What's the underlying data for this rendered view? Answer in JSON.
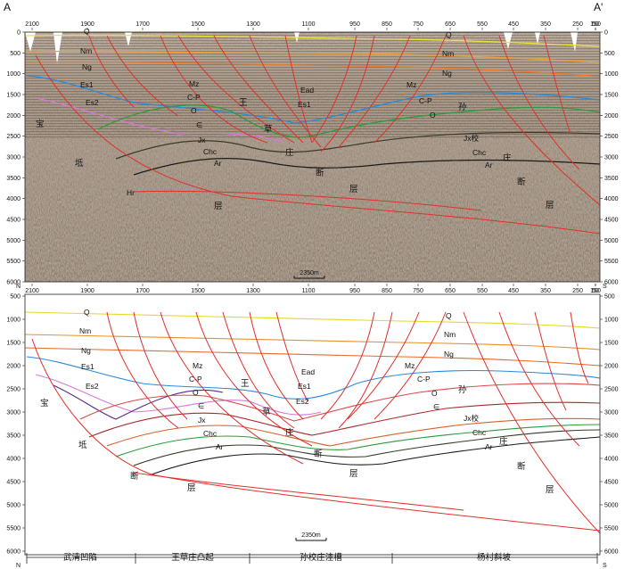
{
  "corner_labels": {
    "left": "A",
    "right": "A'"
  },
  "direction_labels": {
    "north": "N",
    "south": "S"
  },
  "cdp_labels": [
    "2100",
    "1900",
    "1700",
    "1500",
    "1300",
    "1100",
    "950",
    "850",
    "750",
    "650",
    "550",
    "450",
    "350",
    "250",
    "150",
    "50"
  ],
  "depth_labels": [
    "0",
    "500",
    "1000",
    "1500",
    "2000",
    "2500",
    "3000",
    "3500",
    "4000",
    "4500",
    "5000",
    "5500",
    "6000"
  ],
  "scale_bar_label": "2350m",
  "seismic_labels": [
    {
      "id": "q",
      "text": "Q"
    },
    {
      "id": "nm",
      "text": "Nm"
    },
    {
      "id": "ng",
      "text": "Ng"
    },
    {
      "id": "es1",
      "text": "Es1"
    },
    {
      "id": "es2",
      "text": "Es2"
    },
    {
      "id": "mz",
      "text": "Mz"
    },
    {
      "id": "cp",
      "text": "C-P"
    },
    {
      "id": "o",
      "text": "O"
    },
    {
      "id": "cam",
      "text": "∈"
    },
    {
      "id": "wang",
      "text": "王"
    },
    {
      "id": "ead",
      "text": "Ead"
    },
    {
      "id": "es1b",
      "text": "Es1"
    },
    {
      "id": "cao",
      "text": "草"
    },
    {
      "id": "jx",
      "text": "Jx"
    },
    {
      "id": "chc",
      "text": "Chc"
    },
    {
      "id": "ar",
      "text": "Ar"
    },
    {
      "id": "zhuang",
      "text": "庄"
    },
    {
      "id": "duan",
      "text": "断"
    },
    {
      "id": "ceng",
      "text": "层"
    },
    {
      "id": "bao",
      "text": "宝"
    },
    {
      "id": "di",
      "text": "坻"
    },
    {
      "id": "hui",
      "text": "Hr"
    },
    {
      "id": "ceng2",
      "text": "层"
    },
    {
      "id": "q2",
      "text": "Q"
    },
    {
      "id": "nm2",
      "text": "Nm"
    },
    {
      "id": "ng2",
      "text": "Ng"
    },
    {
      "id": "mz2",
      "text": "Mz"
    },
    {
      "id": "cp2",
      "text": "C-P"
    },
    {
      "id": "o2",
      "text": "O"
    },
    {
      "id": "sun",
      "text": "孙"
    },
    {
      "id": "jx2",
      "text": "Jx校"
    },
    {
      "id": "chc2",
      "text": "Chc"
    },
    {
      "id": "ar2",
      "text": "Ar"
    },
    {
      "id": "zhuang2",
      "text": "庄"
    },
    {
      "id": "duan2",
      "text": "断"
    },
    {
      "id": "ceng3",
      "text": "层"
    }
  ],
  "interp_labels": [
    {
      "id": "q",
      "text": "Q"
    },
    {
      "id": "nm",
      "text": "Nm"
    },
    {
      "id": "ng",
      "text": "Ng"
    },
    {
      "id": "es1",
      "text": "Es1"
    },
    {
      "id": "es2",
      "text": "Es2"
    },
    {
      "id": "bao",
      "text": "宝"
    },
    {
      "id": "di",
      "text": "坻"
    },
    {
      "id": "duan",
      "text": "断"
    },
    {
      "id": "ceng",
      "text": "层"
    },
    {
      "id": "mz",
      "text": "Mz"
    },
    {
      "id": "cp",
      "text": "C-P"
    },
    {
      "id": "o",
      "text": "O"
    },
    {
      "id": "cam",
      "text": "∈"
    },
    {
      "id": "jx",
      "text": "Jx"
    },
    {
      "id": "chc",
      "text": "Chc"
    },
    {
      "id": "ar",
      "text": "Ar"
    },
    {
      "id": "wang",
      "text": "王"
    },
    {
      "id": "ead",
      "text": "Ead"
    },
    {
      "id": "es1b",
      "text": "Es1"
    },
    {
      "id": "cao",
      "text": "草"
    },
    {
      "id": "es2b",
      "text": "Es2"
    },
    {
      "id": "zhuang",
      "text": "庄"
    },
    {
      "id": "duan2",
      "text": "断"
    },
    {
      "id": "ceng2",
      "text": "层"
    },
    {
      "id": "q2",
      "text": "Q"
    },
    {
      "id": "nm2",
      "text": "Nm"
    },
    {
      "id": "ng2",
      "text": "Ng"
    },
    {
      "id": "mz2",
      "text": "Mz"
    },
    {
      "id": "cp2",
      "text": "C-P"
    },
    {
      "id": "o2",
      "text": "O"
    },
    {
      "id": "sun",
      "text": "孙"
    },
    {
      "id": "cam2",
      "text": "∈"
    },
    {
      "id": "jx2",
      "text": "Jx校"
    },
    {
      "id": "chc2",
      "text": "Chc"
    },
    {
      "id": "zhuang2",
      "text": "庄"
    },
    {
      "id": "ar2",
      "text": "Ar"
    },
    {
      "id": "duan3",
      "text": "断"
    },
    {
      "id": "ceng3",
      "text": "层"
    }
  ],
  "regions": [
    "武清凹陷",
    "王草庄凸起",
    "孙校庄洼槽",
    "杨村斜坡"
  ],
  "horizon_colors": {
    "Q": "#e8d62a",
    "Nm": "#e8912a",
    "Ng": "#e86a2a",
    "Es1": "#2a8ad8",
    "Es2": "#d878d8",
    "Mz": "#5a2a8a",
    "CP": "#d84a4a",
    "O": "#a82a2a",
    "Cam": "#d8602a",
    "Jx": "#2a9a3a",
    "Chc": "#3a3a2a",
    "Ar": "#1a1a1a",
    "fault": "#e0302a"
  }
}
